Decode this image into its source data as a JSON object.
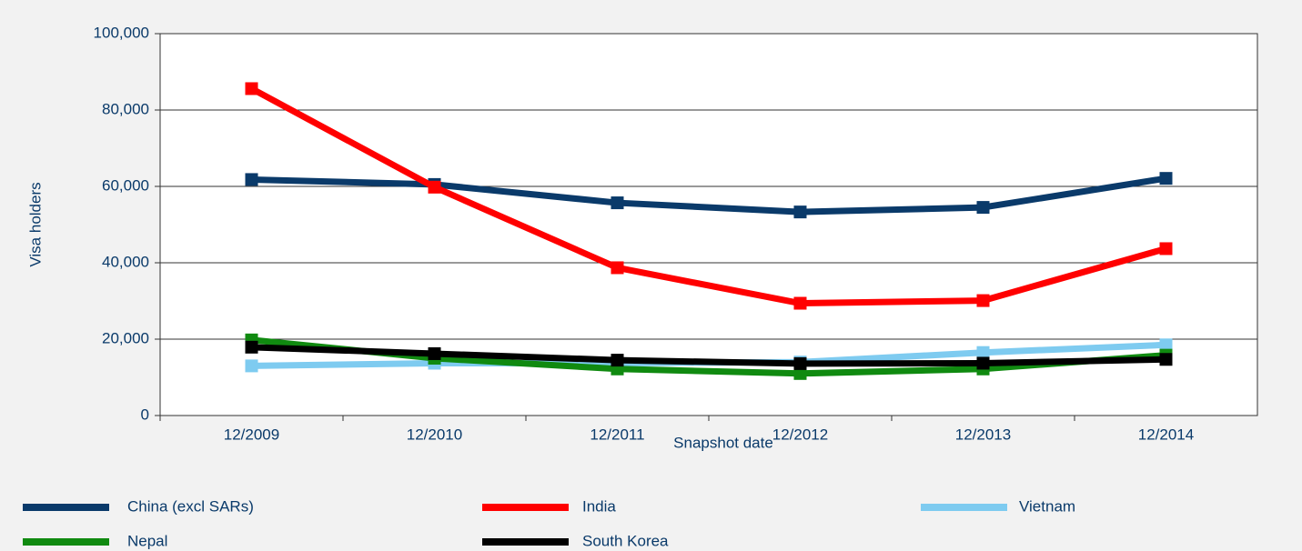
{
  "chart_data": {
    "type": "line",
    "x_label": "Snapshot date",
    "y_label": "Visa holders",
    "categories": [
      "12/2009",
      "12/2010",
      "12/2011",
      "12/2012",
      "12/2013",
      "12/2014"
    ],
    "series": [
      {
        "name": "China (excl SARs)",
        "color": "#0a3a6a",
        "values": [
          61800,
          60500,
          55700,
          53300,
          54500,
          62100
        ]
      },
      {
        "name": "India",
        "color": "#ff0000",
        "values": [
          85600,
          59800,
          38700,
          29400,
          30100,
          43700
        ]
      },
      {
        "name": "Vietnam",
        "color": "#7ecbf0",
        "values": [
          13000,
          13700,
          13700,
          14000,
          16500,
          18500
        ]
      },
      {
        "name": "Nepal",
        "color": "#108a10",
        "values": [
          19800,
          15000,
          12200,
          11000,
          12200,
          15800
        ]
      },
      {
        "name": "South Korea",
        "color": "#000000",
        "values": [
          17900,
          16200,
          14500,
          13600,
          13700,
          14700
        ]
      }
    ],
    "ylim": [
      0,
      100000
    ],
    "yticks": [
      0,
      {
        "value": 20000,
        "label": "20,000"
      },
      {
        "value": 40000,
        "label": "40,000"
      },
      {
        "value": 60000,
        "label": "60,000"
      },
      {
        "value": 80000,
        "label": "80,000"
      },
      {
        "value": 100000,
        "label": "100,000"
      }
    ],
    "grid": true
  }
}
